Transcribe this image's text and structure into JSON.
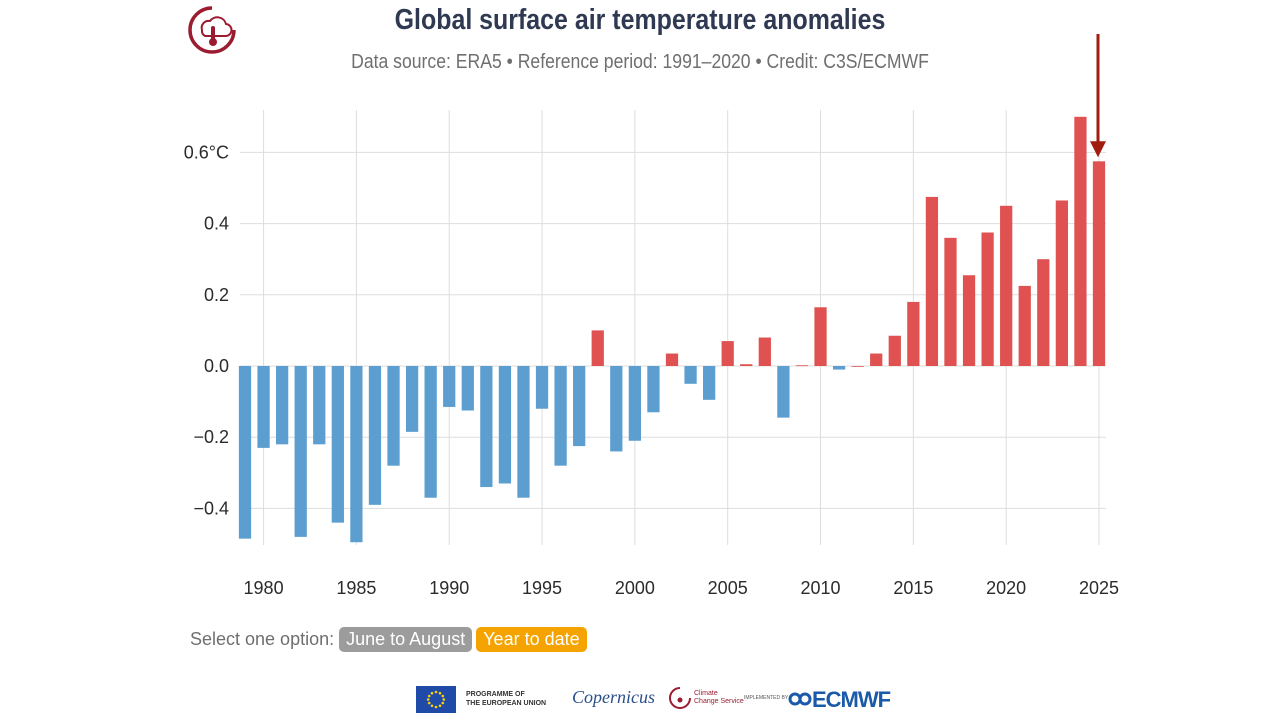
{
  "header": {
    "title": "Global surface air temperature anomalies",
    "subtitle": "Data source: ERA5 • Reference period: 1991–2020 • Credit: C3S/ECMWF"
  },
  "controls": {
    "select_label": "Select one option:",
    "options": [
      "June to August",
      "Year to date"
    ],
    "selected": "Year to date"
  },
  "footer": {
    "eu_line1": "PROGRAMME OF",
    "eu_line2": "THE EUROPEAN UNION",
    "copernicus": "opernicus",
    "ccs_line1": "Climate",
    "ccs_line2": "Change Service",
    "implemented_by": "IMPLEMENTED BY",
    "ecmwf": "ECMWF"
  },
  "colors": {
    "positive": "#e05252",
    "negative": "#5b9ecf",
    "arrow": "#a11d0f",
    "grid": "#dddddd",
    "brand": "#9b1b30"
  },
  "chart_data": {
    "type": "bar",
    "title": "Global surface air temperature anomalies",
    "subtitle": "Data source: ERA5 • Reference period: 1991–2020 • Credit: C3S/ECMWF",
    "xlabel": "",
    "ylabel": "",
    "ylim": [
      -0.52,
      0.72
    ],
    "y_ticks": [
      -0.4,
      -0.2,
      0.0,
      0.2,
      0.4,
      0.6
    ],
    "y_tick_labels": [
      "−0.4",
      "−0.2",
      "0.0",
      "0.2",
      "0.4",
      "0.6°C"
    ],
    "x_ticks": [
      1980,
      1985,
      1990,
      1995,
      2000,
      2005,
      2010,
      2015,
      2020,
      2025
    ],
    "x": [
      1979,
      1980,
      1981,
      1982,
      1983,
      1984,
      1985,
      1986,
      1987,
      1988,
      1989,
      1990,
      1991,
      1992,
      1993,
      1994,
      1995,
      1996,
      1997,
      1998,
      1999,
      2000,
      2001,
      2002,
      2003,
      2004,
      2005,
      2006,
      2007,
      2008,
      2009,
      2010,
      2011,
      2012,
      2013,
      2014,
      2015,
      2016,
      2017,
      2018,
      2019,
      2020,
      2021,
      2022,
      2023,
      2024,
      2025
    ],
    "values": [
      -0.485,
      -0.23,
      -0.22,
      -0.48,
      -0.22,
      -0.44,
      -0.495,
      -0.39,
      -0.28,
      -0.185,
      -0.37,
      -0.115,
      -0.125,
      -0.34,
      -0.33,
      -0.37,
      -0.12,
      -0.28,
      -0.225,
      0.1,
      -0.24,
      -0.21,
      -0.13,
      0.035,
      -0.05,
      -0.095,
      0.07,
      0.005,
      0.08,
      -0.145,
      0.002,
      0.165,
      -0.01,
      0.0,
      0.035,
      0.085,
      0.18,
      0.475,
      0.36,
      0.255,
      0.375,
      0.45,
      0.225,
      0.3,
      0.465,
      0.7,
      0.575
    ],
    "highlight": 2025,
    "grid": true,
    "legend": "none"
  }
}
